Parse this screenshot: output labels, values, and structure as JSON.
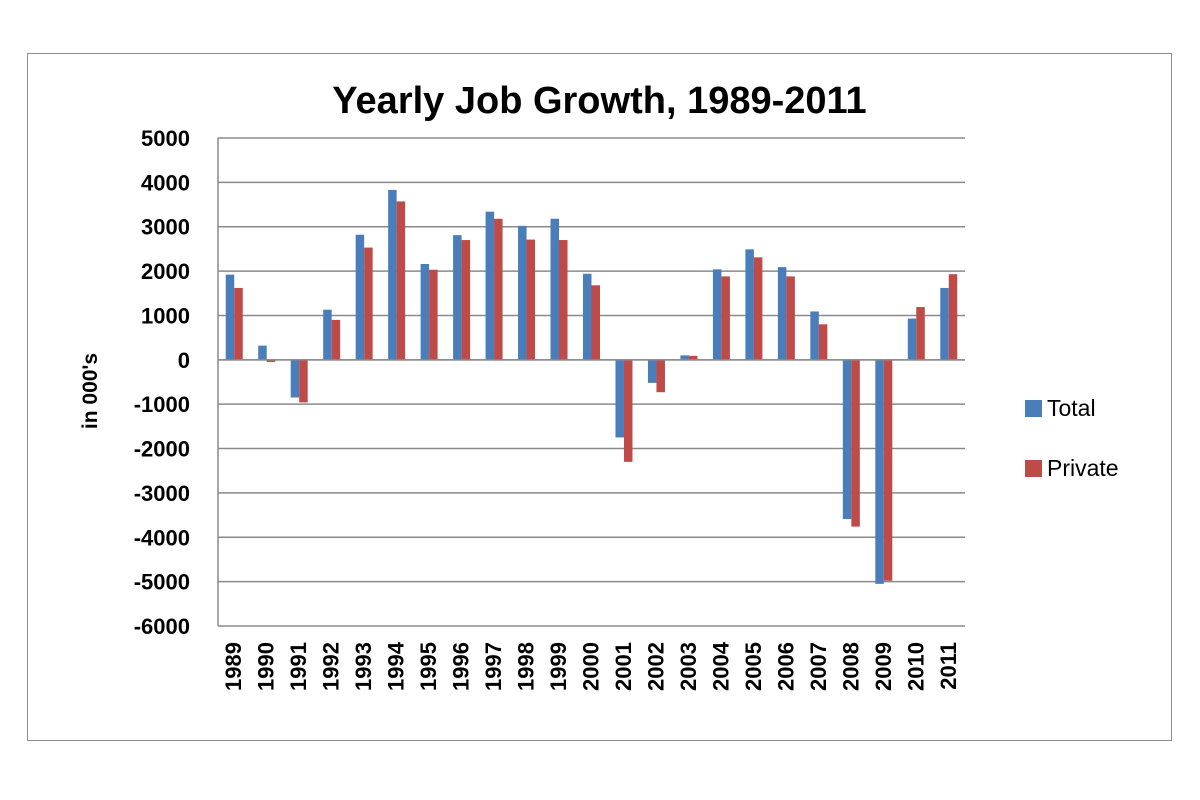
{
  "chart_data": {
    "type": "bar",
    "title": "Yearly Job Growth, 1989-2011",
    "xlabel": "",
    "ylabel": "in 000's",
    "ylim": [
      -6000,
      5000
    ],
    "yticks": [
      5000,
      4000,
      3000,
      2000,
      1000,
      0,
      -1000,
      -2000,
      -3000,
      -4000,
      -5000,
      -6000
    ],
    "grid": true,
    "legend_position": "right",
    "categories": [
      "1989",
      "1990",
      "1991",
      "1992",
      "1993",
      "1994",
      "1995",
      "1996",
      "1997",
      "1998",
      "1999",
      "2000",
      "2001",
      "2002",
      "2003",
      "2004",
      "2005",
      "2006",
      "2007",
      "2008",
      "2009",
      "2010",
      "2011"
    ],
    "series": [
      {
        "name": "Total",
        "color": "#4a7ebb",
        "values": [
          1920,
          320,
          -850,
          1130,
          2820,
          3830,
          2160,
          2810,
          3340,
          3020,
          3180,
          1940,
          -1750,
          -520,
          100,
          2040,
          2490,
          2090,
          1090,
          -3590,
          -5050,
          930,
          1620
        ]
      },
      {
        "name": "Private",
        "color": "#be4b48",
        "values": [
          1620,
          -50,
          -960,
          900,
          2530,
          3570,
          2030,
          2700,
          3180,
          2710,
          2700,
          1680,
          -2300,
          -730,
          90,
          1880,
          2310,
          1880,
          800,
          -3760,
          -4980,
          1190,
          1930
        ]
      }
    ]
  }
}
